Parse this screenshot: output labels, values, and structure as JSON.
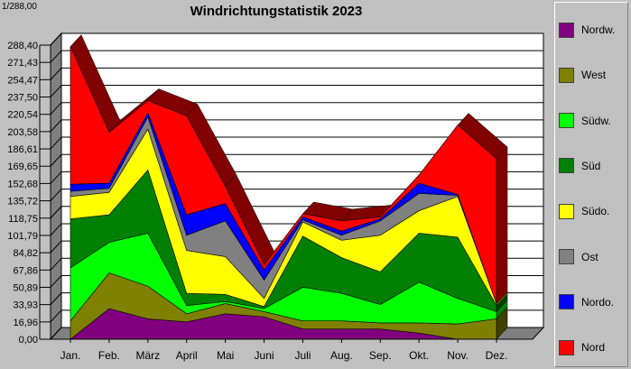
{
  "corner_label": "1/288,00",
  "chart_data": {
    "type": "area",
    "title": "Windrichtungstatistik 2023",
    "categories": [
      "Jan.",
      "Feb.",
      "März",
      "April",
      "Mai",
      "Juni",
      "Juli",
      "Aug.",
      "Sep.",
      "Okt.",
      "Nov.",
      "Dez."
    ],
    "yticks": [
      "0,00",
      "16,96",
      "33,93",
      "50,89",
      "67,86",
      "84,82",
      "101,79",
      "118,75",
      "135,72",
      "152,68",
      "169,65",
      "186,61",
      "203,58",
      "220,54",
      "237,50",
      "254,47",
      "271,43",
      "288,40"
    ],
    "ylim": [
      0,
      288.4
    ],
    "grid": true,
    "legend_position": "right",
    "series": [
      {
        "name": "Nordw.",
        "color": "#800080",
        "values": [
          0,
          30,
          20,
          17,
          25,
          22,
          10,
          10,
          10,
          6,
          0,
          0
        ]
      },
      {
        "name": "West",
        "color": "#808000",
        "values": [
          18,
          35,
          32,
          8,
          10,
          5,
          8,
          8,
          6,
          10,
          15,
          20
        ]
      },
      {
        "name": "Südw.",
        "color": "#00ff00",
        "values": [
          52,
          30,
          52,
          8,
          2,
          3,
          33,
          27,
          18,
          40,
          25,
          7
        ]
      },
      {
        "name": "Süd",
        "color": "#008000",
        "values": [
          48,
          27,
          62,
          12,
          7,
          2,
          50,
          35,
          32,
          48,
          60,
          6
        ]
      },
      {
        "name": "Südo.",
        "color": "#ffff00",
        "values": [
          22,
          22,
          40,
          42,
          37,
          8,
          14,
          17,
          36,
          22,
          40,
          2
        ]
      },
      {
        "name": "Ost",
        "color": "#808080",
        "values": [
          5,
          4,
          12,
          15,
          35,
          18,
          2,
          5,
          14,
          17,
          1,
          0
        ]
      },
      {
        "name": "Nordo.",
        "color": "#0000ff",
        "values": [
          7,
          5,
          4,
          20,
          17,
          10,
          3,
          4,
          2,
          10,
          1,
          0
        ]
      },
      {
        "name": "Nord",
        "color": "#ff0000",
        "values": [
          135,
          50,
          12,
          97,
          17,
          5,
          3,
          10,
          2,
          8,
          68,
          142
        ]
      }
    ]
  }
}
